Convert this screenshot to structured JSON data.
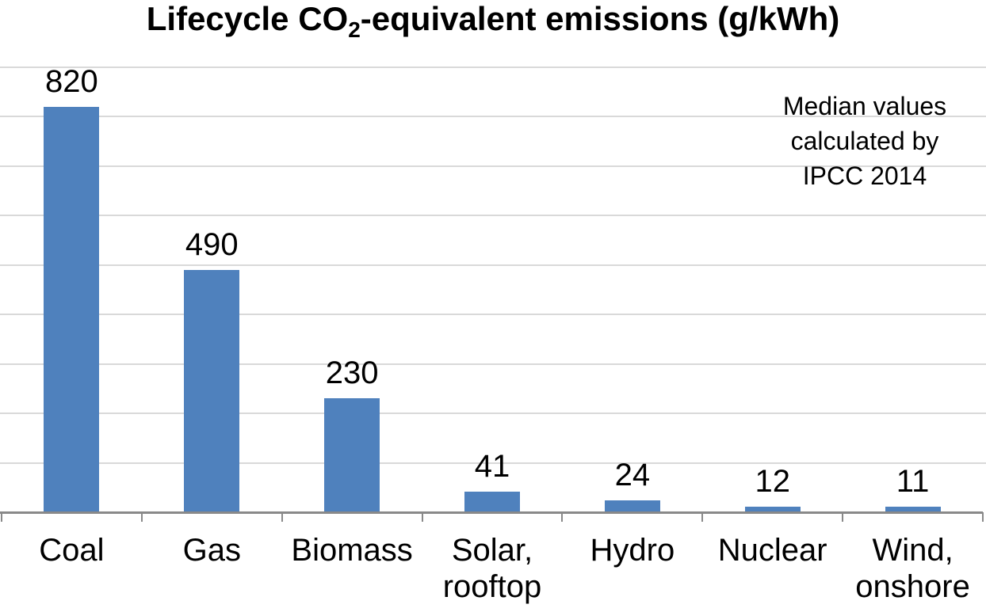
{
  "title": {
    "prefix": "Lifecycle CO",
    "subscript": "2",
    "suffix": "-equivalent emissions (g/kWh)"
  },
  "annotation": {
    "lines": [
      "Median values",
      "calculated by",
      "IPCC 2014"
    ]
  },
  "chart_data": {
    "type": "bar",
    "title": "Lifecycle CO2-equivalent emissions (g/kWh)",
    "categories": [
      "Coal",
      "Gas",
      "Biomass",
      "Solar, rooftop",
      "Hydro",
      "Nuclear",
      "Wind, onshore"
    ],
    "category_lines": [
      [
        "Coal"
      ],
      [
        "Gas"
      ],
      [
        "Biomass"
      ],
      [
        "Solar,",
        "rooftop"
      ],
      [
        "Hydro"
      ],
      [
        "Nuclear"
      ],
      [
        "Wind,",
        "onshore"
      ]
    ],
    "values": [
      820,
      490,
      230,
      41,
      24,
      12,
      11
    ],
    "data_labels": [
      "820",
      "490",
      "230",
      "41",
      "24",
      "12",
      "11"
    ],
    "xlabel": "",
    "ylabel": "",
    "ylim": [
      0,
      900
    ],
    "gridline_step": 100,
    "grid": true,
    "legend_position": "none",
    "annotation": "Median values calculated by IPCC 2014",
    "colors": {
      "bar": "#4f81bd",
      "gridline": "#d9d9d9",
      "axis": "#898989",
      "text": "#000000"
    }
  }
}
